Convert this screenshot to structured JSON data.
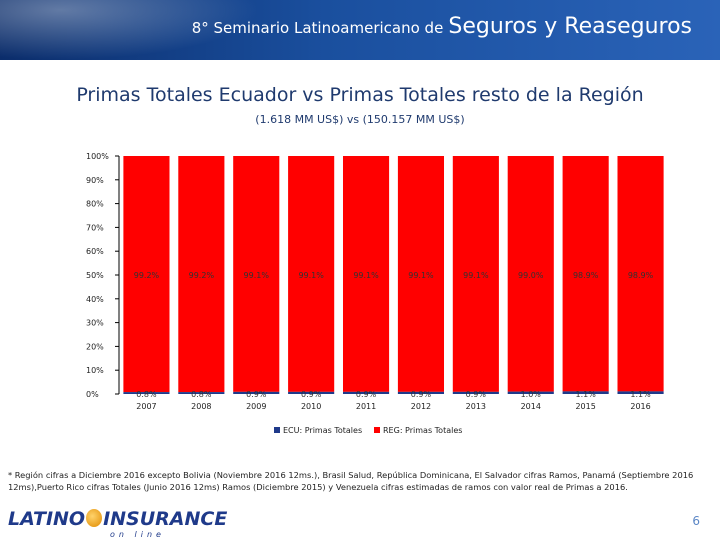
{
  "banner": {
    "prefix": "8° Seminario Latinoamericano de",
    "highlight": "Seguros y Reaseguros"
  },
  "title": "Primas Totales Ecuador vs Primas Totales resto de la Región",
  "subtitle": "(1.618 MM US$)  vs  (150.157  MM US$)",
  "chart_data": {
    "type": "bar",
    "stacked": true,
    "categories": [
      "2007",
      "2008",
      "2009",
      "2010",
      "2011",
      "2012",
      "2013",
      "2014",
      "2015",
      "2016"
    ],
    "series": [
      {
        "name": "ECU: Primas Totales",
        "values": [
          0.8,
          0.8,
          0.9,
          0.9,
          0.9,
          0.9,
          0.9,
          1.0,
          1.1,
          1.1
        ],
        "labels": [
          "0.8%",
          "0.8%",
          "0.9%",
          "0.9%",
          "0.9%",
          "0.9%",
          "0.9%",
          "1.0%",
          "1.1%",
          "1.1%"
        ],
        "color": "#1f3a8a"
      },
      {
        "name": "REG: Primas Totales",
        "values": [
          99.2,
          99.2,
          99.1,
          99.1,
          99.1,
          99.1,
          99.1,
          99.0,
          98.9,
          98.9
        ],
        "labels": [
          "99.2%",
          "99.2%",
          "99.1%",
          "99.1%",
          "99.1%",
          "99.1%",
          "99.1%",
          "99.0%",
          "98.9%",
          "98.9%"
        ],
        "color": "#ff0000"
      }
    ],
    "yticks": [
      "0%",
      "10%",
      "20%",
      "30%",
      "40%",
      "50%",
      "60%",
      "70%",
      "80%",
      "90%",
      "100%"
    ],
    "ylim": [
      0,
      100
    ],
    "legend": "bottom",
    "grid": false
  },
  "footnote": "* Región cifras a Diciembre 2016 excepto Bolivia (Noviembre 2016 12ms.), Brasil Salud, República Dominicana, El Salvador cifras Ramos, Panamá (Septiembre 2016 12ms),Puerto Rico cifras Totales (Junio 2016 12ms) Ramos (Diciembre 2015) y Venezuela cifras estimadas de ramos con valor real de Primas a 2016.",
  "logo": {
    "text_left": "LATINO",
    "text_right": "INSURANCE",
    "subtext": "on line"
  },
  "page_number": "6"
}
